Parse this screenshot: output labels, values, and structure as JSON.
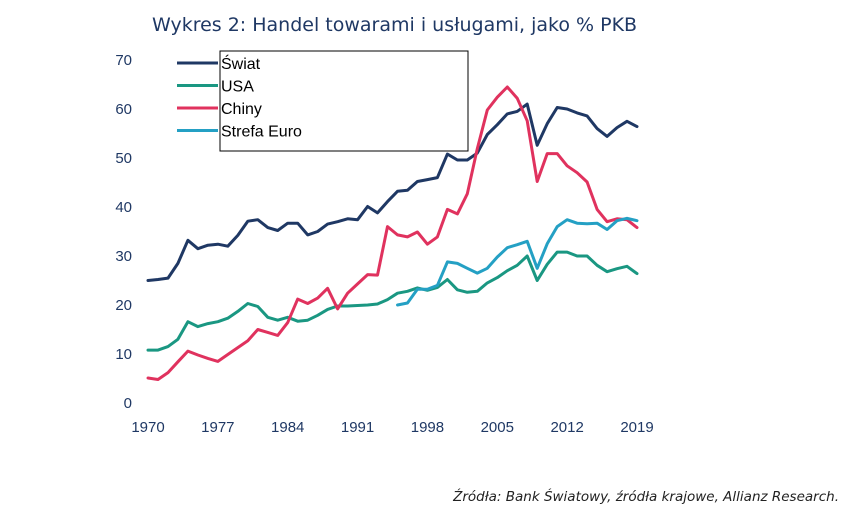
{
  "title": "Wykres 2: Handel towarami i usługami, jako % PKB",
  "source": "Źródła: Bank Światowy, źródła krajowe, Allianz Research.",
  "chart_data": {
    "type": "line",
    "title": "Wykres 2: Handel towarami i usługami, jako % PKB",
    "xlabel": "",
    "ylabel": "",
    "xlim": [
      1970,
      2019
    ],
    "ylim": [
      0,
      70
    ],
    "x_ticks": [
      1970,
      1977,
      1984,
      1991,
      1998,
      2005,
      2012,
      2019
    ],
    "y_ticks": [
      0,
      10,
      20,
      30,
      40,
      50,
      60,
      70
    ],
    "grid": false,
    "legend_position": "top-left",
    "series": [
      {
        "name": "Świat",
        "color": "#1f3864",
        "x": [
          1970,
          1971,
          1972,
          1973,
          1974,
          1975,
          1976,
          1977,
          1978,
          1979,
          1980,
          1981,
          1982,
          1983,
          1984,
          1985,
          1986,
          1987,
          1988,
          1989,
          1990,
          1991,
          1992,
          1993,
          1994,
          1995,
          1996,
          1997,
          1998,
          1999,
          2000,
          2001,
          2002,
          2003,
          2004,
          2005,
          2006,
          2007,
          2008,
          2009,
          2010,
          2011,
          2012,
          2013,
          2014,
          2015,
          2016,
          2017,
          2018,
          2019
        ],
        "values": [
          25,
          25.2,
          25.5,
          28.5,
          33.2,
          31.5,
          32.2,
          32.4,
          32,
          34.2,
          37.1,
          37.4,
          35.8,
          35.2,
          36.7,
          36.7,
          34.3,
          35,
          36.5,
          37,
          37.6,
          37.4,
          40.1,
          38.8,
          41.1,
          43.2,
          43.4,
          45.2,
          45.6,
          46,
          50.8,
          49.6,
          49.6,
          51,
          54.8,
          56.8,
          59,
          59.5,
          61,
          52.6,
          57,
          60.3,
          60,
          59.2,
          58.6,
          56,
          54.4,
          56.2,
          57.5,
          56.4
        ]
      },
      {
        "name": "USA",
        "color": "#1a9782",
        "x": [
          1970,
          1971,
          1972,
          1973,
          1974,
          1975,
          1976,
          1977,
          1978,
          1979,
          1980,
          1981,
          1982,
          1983,
          1984,
          1985,
          1986,
          1987,
          1988,
          1989,
          1990,
          1991,
          1992,
          1993,
          1994,
          1995,
          1996,
          1997,
          1998,
          1999,
          2000,
          2001,
          2002,
          2003,
          2004,
          2005,
          2006,
          2007,
          2008,
          2009,
          2010,
          2011,
          2012,
          2013,
          2014,
          2015,
          2016,
          2017,
          2018,
          2019
        ],
        "values": [
          10.8,
          10.8,
          11.5,
          13,
          16.6,
          15.6,
          16.2,
          16.6,
          17.3,
          18.7,
          20.3,
          19.7,
          17.5,
          16.9,
          17.5,
          16.7,
          16.9,
          17.9,
          19.1,
          19.8,
          19.8,
          19.9,
          20,
          20.2,
          21.1,
          22.4,
          22.8,
          23.5,
          23,
          23.6,
          25.2,
          23.1,
          22.6,
          22.8,
          24.5,
          25.6,
          27,
          28.1,
          30,
          25,
          28.3,
          30.8,
          30.8,
          30,
          30,
          28.1,
          26.8,
          27.4,
          27.9,
          26.4
        ]
      },
      {
        "name": "Chiny",
        "color": "#e0325e",
        "x": [
          1970,
          1971,
          1972,
          1973,
          1974,
          1975,
          1976,
          1977,
          1978,
          1979,
          1980,
          1981,
          1982,
          1983,
          1984,
          1985,
          1986,
          1987,
          1988,
          1989,
          1990,
          1991,
          1992,
          1993,
          1994,
          1995,
          1996,
          1997,
          1998,
          1999,
          2000,
          2001,
          2002,
          2003,
          2004,
          2005,
          2006,
          2007,
          2008,
          2009,
          2010,
          2011,
          2012,
          2013,
          2014,
          2015,
          2016,
          2017,
          2018,
          2019
        ],
        "values": [
          5.1,
          4.8,
          6.2,
          8.4,
          10.6,
          9.8,
          9.1,
          8.5,
          9.9,
          11.3,
          12.7,
          15,
          14.4,
          13.8,
          16.4,
          21.2,
          20.3,
          21.4,
          23.4,
          19.2,
          22.4,
          24.3,
          26.2,
          26.1,
          36,
          34.3,
          33.9,
          34.9,
          32.4,
          33.9,
          39.5,
          38.6,
          42.7,
          51.9,
          59.8,
          62.4,
          64.5,
          62.2,
          57.6,
          45.2,
          50.9,
          50.9,
          48.4,
          47.0,
          45.1,
          39.5,
          37,
          37.6,
          37.4,
          35.8
        ]
      },
      {
        "name": "Strefa Euro",
        "color": "#24a0c4",
        "x": [
          1995,
          1996,
          1997,
          1998,
          1999,
          2000,
          2001,
          2002,
          2003,
          2004,
          2005,
          2006,
          2007,
          2008,
          2009,
          2010,
          2011,
          2012,
          2013,
          2014,
          2015,
          2016,
          2017,
          2018,
          2019
        ],
        "values": [
          20,
          20.4,
          23.2,
          23.2,
          24,
          28.8,
          28.5,
          27.5,
          26.5,
          27.5,
          29.8,
          31.7,
          32.3,
          33,
          27.5,
          32.5,
          36,
          37.4,
          36.7,
          36.6,
          36.7,
          35.4,
          37.2,
          37.7,
          37.2
        ]
      }
    ]
  }
}
